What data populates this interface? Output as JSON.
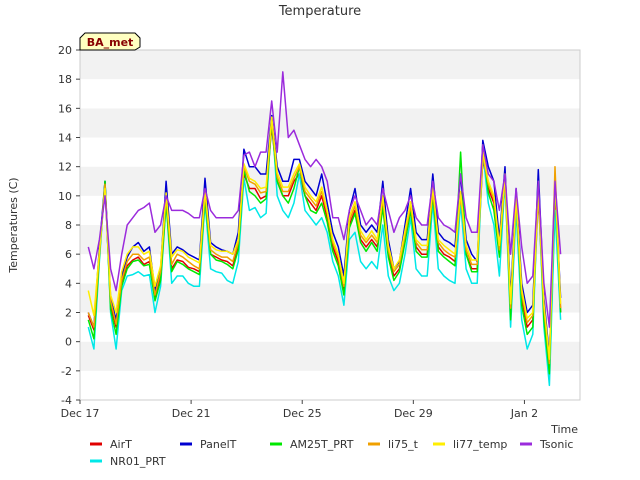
{
  "chart_data": {
    "type": "line",
    "title": "Temperature",
    "xlabel": "Time",
    "ylabel": "Temperatures (C)",
    "ylim": [
      -4,
      20
    ],
    "xlim": [
      0,
      18
    ],
    "yticks": [
      -4,
      -2,
      0,
      2,
      4,
      6,
      8,
      10,
      12,
      14,
      16,
      18,
      20
    ],
    "xticks": [
      {
        "label": "Dec 17",
        "value": 0
      },
      {
        "label": "Dec 21",
        "value": 4
      },
      {
        "label": "Dec 25",
        "value": 8
      },
      {
        "label": "Dec 29",
        "value": 12
      },
      {
        "label": "Jan 2",
        "value": 16
      }
    ],
    "grid": "horizontal-bands",
    "legend_position": "bottom",
    "annotation": "BA_met",
    "x": [
      0.3,
      0.5,
      0.7,
      0.9,
      1.1,
      1.3,
      1.5,
      1.7,
      1.9,
      2.1,
      2.3,
      2.5,
      2.7,
      2.9,
      3.1,
      3.3,
      3.5,
      3.7,
      3.9,
      4.1,
      4.3,
      4.5,
      4.7,
      4.9,
      5.1,
      5.3,
      5.5,
      5.7,
      5.9,
      6.1,
      6.3,
      6.5,
      6.7,
      6.9,
      7.1,
      7.3,
      7.5,
      7.7,
      7.9,
      8.1,
      8.3,
      8.5,
      8.7,
      8.9,
      9.1,
      9.3,
      9.5,
      9.7,
      9.9,
      10.1,
      10.3,
      10.5,
      10.7,
      10.9,
      11.1,
      11.3,
      11.5,
      11.7,
      11.9,
      12.1,
      12.3,
      12.5,
      12.7,
      12.9,
      13.1,
      13.3,
      13.5,
      13.7,
      13.9,
      14.1,
      14.3,
      14.5,
      14.7,
      14.9,
      15.1,
      15.3,
      15.5,
      15.7,
      15.9,
      16.1,
      16.3,
      16.5,
      16.7,
      16.9,
      17.1,
      17.3
    ],
    "series": [
      {
        "name": "AirT",
        "color": "#e00000",
        "values": [
          1.8,
          0.8,
          6.0,
          10.8,
          2.5,
          1.0,
          4.0,
          5.2,
          5.6,
          5.8,
          5.3,
          5.5,
          3.0,
          4.5,
          9.8,
          5.0,
          5.6,
          5.5,
          5.1,
          5.0,
          4.8,
          10.0,
          6.0,
          5.8,
          5.6,
          5.5,
          5.2,
          6.5,
          11.5,
          10.5,
          10.5,
          9.8,
          10.0,
          14.8,
          11.0,
          10.0,
          10.0,
          11.0,
          11.5,
          10.0,
          9.5,
          9.0,
          10.0,
          8.5,
          6.5,
          5.5,
          3.5,
          8.0,
          9.0,
          7.0,
          6.5,
          7.0,
          6.5,
          9.5,
          6.0,
          4.5,
          5.0,
          7.0,
          9.0,
          6.5,
          6.0,
          6.0,
          10.0,
          6.5,
          6.0,
          5.8,
          5.5,
          9.8,
          6.0,
          5.0,
          5.0,
          12.5,
          10.5,
          9.5,
          6.0,
          11.0,
          2.0,
          9.5,
          3.0,
          1.0,
          1.5,
          10.0,
          2.0,
          -1.8,
          10.0,
          2.0
        ]
      },
      {
        "name": "NR01_PRT",
        "color": "#00e8e8",
        "values": [
          1.0,
          -0.5,
          5.5,
          11.0,
          2.0,
          -0.5,
          3.5,
          4.5,
          4.6,
          4.8,
          4.5,
          4.6,
          2.0,
          3.8,
          9.5,
          4.0,
          4.5,
          4.5,
          4.0,
          3.8,
          3.8,
          9.5,
          5.0,
          4.8,
          4.7,
          4.2,
          4.0,
          5.5,
          11.2,
          9.0,
          9.2,
          8.5,
          8.8,
          15.5,
          10.0,
          9.0,
          8.5,
          9.5,
          11.5,
          9.0,
          8.5,
          8.0,
          8.5,
          7.5,
          5.5,
          4.5,
          2.5,
          7.0,
          7.5,
          5.5,
          5.0,
          5.5,
          5.0,
          8.0,
          4.5,
          3.5,
          4.0,
          6.0,
          8.5,
          5.0,
          4.5,
          4.5,
          9.5,
          5.0,
          4.5,
          4.2,
          4.0,
          9.5,
          5.0,
          4.0,
          4.0,
          13.0,
          9.5,
          8.0,
          4.5,
          11.0,
          1.0,
          9.0,
          1.5,
          -0.5,
          0.5,
          10.5,
          1.0,
          -3.0,
          9.0,
          1.5
        ]
      },
      {
        "name": "PanelT",
        "color": "#0000d0",
        "values": [
          2.0,
          1.0,
          6.5,
          11.0,
          3.0,
          1.5,
          4.5,
          5.8,
          6.5,
          6.8,
          6.2,
          6.5,
          3.5,
          5.0,
          11.0,
          6.0,
          6.5,
          6.3,
          6.0,
          5.8,
          5.6,
          11.2,
          6.8,
          6.5,
          6.3,
          6.2,
          6.0,
          7.5,
          13.2,
          12.0,
          12.0,
          11.5,
          11.5,
          15.5,
          12.0,
          11.0,
          11.0,
          12.5,
          12.5,
          11.0,
          10.5,
          10.0,
          11.5,
          9.5,
          7.5,
          6.5,
          4.5,
          9.0,
          10.5,
          8.0,
          7.5,
          8.0,
          7.5,
          11.0,
          7.0,
          5.0,
          5.5,
          8.0,
          10.5,
          7.5,
          7.0,
          7.0,
          11.5,
          7.5,
          7.0,
          6.8,
          6.5,
          11.5,
          7.0,
          6.0,
          5.5,
          13.8,
          12.0,
          11.0,
          7.0,
          12.0,
          3.0,
          10.5,
          4.0,
          2.0,
          2.5,
          11.8,
          3.0,
          -1.0,
          11.0,
          3.0
        ]
      },
      {
        "name": "AM25T_PRT",
        "color": "#00e800",
        "values": [
          1.5,
          0.2,
          5.8,
          11.0,
          2.2,
          0.5,
          3.8,
          5.0,
          5.5,
          5.6,
          5.2,
          5.3,
          2.8,
          4.2,
          9.5,
          4.8,
          5.5,
          5.3,
          5.0,
          4.8,
          4.6,
          9.8,
          6.0,
          5.6,
          5.5,
          5.3,
          5.0,
          6.3,
          11.8,
          10.3,
          10.0,
          9.5,
          9.8,
          15.0,
          11.0,
          10.0,
          9.5,
          10.5,
          12.0,
          10.0,
          9.0,
          8.8,
          9.5,
          8.2,
          6.2,
          5.2,
          3.2,
          7.8,
          8.8,
          6.8,
          6.2,
          6.8,
          6.2,
          9.2,
          5.8,
          4.2,
          4.8,
          6.8,
          9.0,
          6.2,
          5.8,
          5.8,
          10.0,
          6.2,
          5.8,
          5.5,
          5.2,
          13.0,
          6.0,
          4.8,
          4.8,
          13.5,
          10.2,
          9.0,
          5.8,
          11.5,
          1.5,
          10.0,
          2.5,
          0.5,
          1.0,
          11.0,
          1.5,
          -2.2,
          11.0,
          2.0
        ]
      },
      {
        "name": "li75_t",
        "color": "#f0a000",
        "values": [
          2.0,
          1.0,
          6.0,
          10.8,
          2.8,
          1.2,
          4.2,
          5.5,
          6.0,
          6.0,
          5.6,
          5.8,
          3.2,
          4.8,
          10.0,
          5.3,
          6.0,
          5.8,
          5.5,
          5.2,
          5.0,
          10.2,
          6.3,
          6.0,
          5.8,
          5.8,
          5.5,
          6.8,
          12.0,
          11.0,
          10.8,
          10.2,
          10.3,
          15.2,
          11.3,
          10.3,
          10.3,
          11.2,
          12.0,
          10.3,
          9.8,
          9.3,
          10.3,
          8.8,
          6.8,
          5.8,
          3.8,
          8.3,
          9.3,
          7.3,
          6.8,
          7.3,
          6.8,
          9.8,
          6.3,
          4.8,
          5.3,
          7.3,
          9.3,
          6.8,
          6.3,
          6.3,
          10.3,
          6.8,
          6.3,
          6.0,
          5.8,
          10.0,
          6.3,
          5.3,
          5.3,
          12.8,
          10.8,
          9.8,
          6.3,
          11.2,
          2.3,
          9.8,
          3.3,
          1.3,
          1.8,
          10.3,
          2.3,
          -1.5,
          12.0,
          2.3
        ]
      },
      {
        "name": "li77_temp",
        "color": "#ffee00",
        "values": [
          3.5,
          1.8,
          6.2,
          10.5,
          3.2,
          2.0,
          4.8,
          6.0,
          6.5,
          6.5,
          6.0,
          6.2,
          3.8,
          5.2,
          10.2,
          5.8,
          6.3,
          6.2,
          5.8,
          5.6,
          5.4,
          10.4,
          6.6,
          6.3,
          6.2,
          6.2,
          6.0,
          7.0,
          12.2,
          11.2,
          11.0,
          10.5,
          10.6,
          15.4,
          11.6,
          10.6,
          10.6,
          11.5,
          12.2,
          10.6,
          10.0,
          9.6,
          10.6,
          9.0,
          7.0,
          6.0,
          4.0,
          8.6,
          9.6,
          7.6,
          7.0,
          7.6,
          7.0,
          10.0,
          6.6,
          5.0,
          5.6,
          7.6,
          9.6,
          7.0,
          6.6,
          6.6,
          10.6,
          7.0,
          6.6,
          6.3,
          6.0,
          10.3,
          6.6,
          5.6,
          5.6,
          13.0,
          11.0,
          10.0,
          6.6,
          11.5,
          2.6,
          10.0,
          3.6,
          1.6,
          2.0,
          10.6,
          2.6,
          -1.2,
          11.0,
          2.6
        ]
      },
      {
        "name": "Tsonic",
        "color": "#9b2bdc",
        "values": [
          6.5,
          5.0,
          7.0,
          10.0,
          5.0,
          3.5,
          6.0,
          8.0,
          8.5,
          9.0,
          9.2,
          9.5,
          7.5,
          8.0,
          10.0,
          9.0,
          9.0,
          9.0,
          8.8,
          8.5,
          8.5,
          10.5,
          9.0,
          8.5,
          8.5,
          8.5,
          8.5,
          9.0,
          12.8,
          13.0,
          12.0,
          13.0,
          13.0,
          16.5,
          13.0,
          18.5,
          14.0,
          14.5,
          13.5,
          12.5,
          12.0,
          12.5,
          12.0,
          11.0,
          8.5,
          8.5,
          7.0,
          9.0,
          10.0,
          9.0,
          8.0,
          8.5,
          8.0,
          10.5,
          9.0,
          7.5,
          8.5,
          9.0,
          10.0,
          8.5,
          8.0,
          8.0,
          11.0,
          8.5,
          8.0,
          7.8,
          7.5,
          11.5,
          8.5,
          7.5,
          7.5,
          13.5,
          11.5,
          11.0,
          9.0,
          11.5,
          6.0,
          10.5,
          6.5,
          4.0,
          4.5,
          11.0,
          4.0,
          1.0,
          11.0,
          6.0
        ]
      }
    ]
  }
}
